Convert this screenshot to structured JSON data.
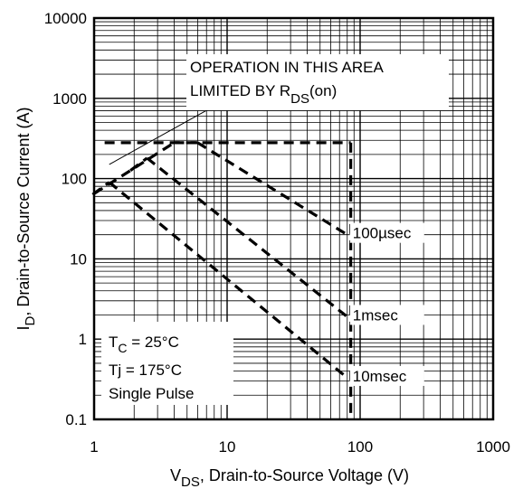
{
  "chart_data": {
    "type": "line",
    "x_scale": "log",
    "y_scale": "log",
    "xlim": [
      1,
      1000
    ],
    "ylim": [
      0.1,
      10000
    ],
    "grid": true,
    "x_tick_labels": [
      "1",
      "10",
      "100",
      "1000"
    ],
    "x_tick_values": [
      1,
      10,
      100,
      1000
    ],
    "y_tick_labels": [
      "0.1",
      "1",
      "10",
      "100",
      "1000",
      "10000"
    ],
    "y_tick_values": [
      0.1,
      1,
      10,
      100,
      1000,
      10000
    ],
    "xlabel": {
      "main": "V",
      "sub": "DS",
      "rest": ", Drain-to-Source Voltage (V)"
    },
    "ylabel": {
      "main": "I",
      "sub": "D",
      "rest": ",  Drain-to-Source Current (A)"
    },
    "annotation": {
      "line1": "OPERATION IN THIS AREA",
      "line2_prefix": "LIMITED BY R",
      "line2_sub": "DS",
      "line2_suffix": "(on)"
    },
    "conditions": {
      "tc_main": "T",
      "tc_sub": "C",
      "tc_rest": " = 25°C",
      "tj": "Tj = 175°C",
      "pulse": "Single Pulse"
    },
    "series": [
      {
        "name": "100µsec",
        "points": [
          [
            6,
            280
          ],
          [
            80,
            20
          ]
        ]
      },
      {
        "name": "1msec",
        "points": [
          [
            2.5,
            180
          ],
          [
            80,
            1.9
          ]
        ]
      },
      {
        "name": "10msec",
        "points": [
          [
            1.3,
            90
          ],
          [
            80,
            0.33
          ]
        ]
      }
    ],
    "rds_on_limit": [
      [
        1,
        65
      ],
      [
        4,
        280
      ]
    ],
    "current_limit": [
      [
        1.2,
        280
      ],
      [
        85,
        280
      ]
    ],
    "voltage_limit": [
      [
        85,
        280
      ],
      [
        85,
        0.1
      ]
    ],
    "annotation_leader": [
      [
        1.3,
        150
      ],
      [
        8,
        800
      ]
    ]
  }
}
